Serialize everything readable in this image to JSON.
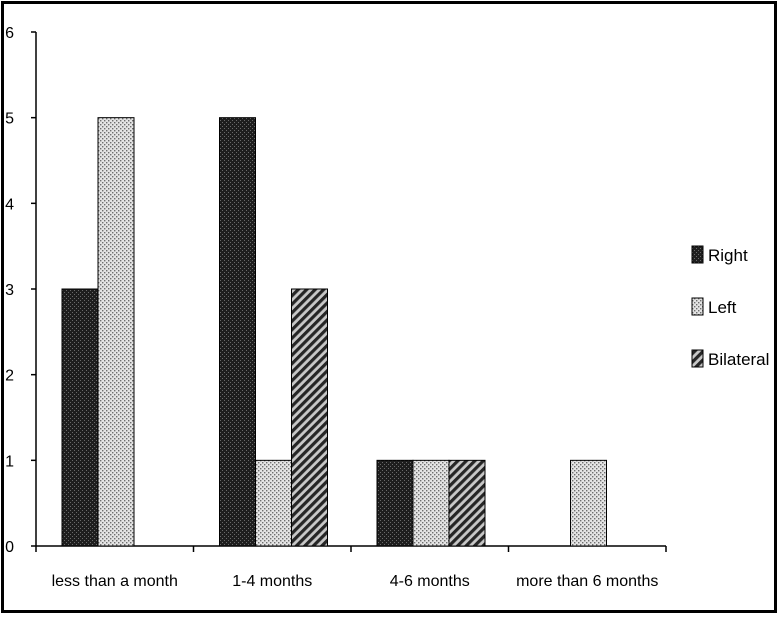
{
  "chart_data": {
    "type": "bar",
    "categories": [
      "less than a month",
      "1-4 months",
      "4-6 months",
      "more than 6 months"
    ],
    "series": [
      {
        "name": "Right",
        "values": [
          3,
          5,
          1,
          0
        ],
        "pattern": "dark-crosshatch"
      },
      {
        "name": "Left",
        "values": [
          5,
          1,
          1,
          1
        ],
        "pattern": "light-dots"
      },
      {
        "name": "Bilateral",
        "values": [
          0,
          3,
          1,
          0
        ],
        "pattern": "diagonal-stripes"
      }
    ],
    "ylim": [
      0,
      6
    ],
    "yticks": [
      0,
      1,
      2,
      3,
      4,
      5,
      6
    ],
    "title": "",
    "xlabel": "",
    "ylabel": "",
    "grid": false,
    "legend_position": "right",
    "colors": {
      "axis": "#000000",
      "bar_edge": "#000000",
      "background": "#ffffff"
    }
  }
}
